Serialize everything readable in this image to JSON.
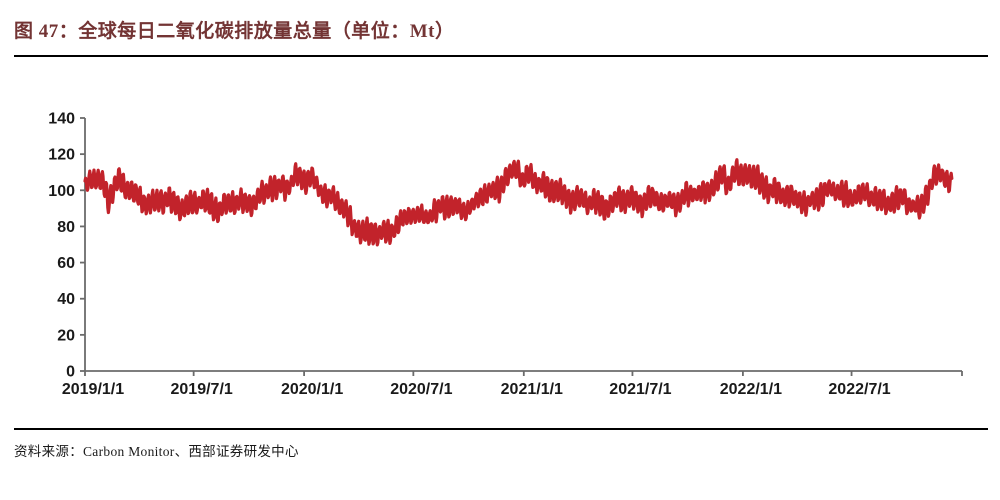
{
  "figure": {
    "title": "图 47：全球每日二氧化碳排放量总量（单位：Mt）",
    "source": "资料来源：Carbon Monitor、西部证券研发中心"
  },
  "colors": {
    "title_text": "#733434",
    "line": "#c2232b",
    "axis": "#6b6b6b",
    "tick_label": "#1a1a1a",
    "rule": "#000000"
  },
  "chart_data": {
    "type": "line",
    "title": "全球每日二氧化碳排放量总量",
    "unit": "Mt",
    "xlabel": "",
    "ylabel": "",
    "ylim": [
      0,
      140
    ],
    "yticks": [
      0,
      20,
      40,
      60,
      80,
      100,
      120,
      140
    ],
    "xticks": [
      "2019/1/1",
      "2019/7/1",
      "2020/1/1",
      "2020/7/1",
      "2021/1/1",
      "2021/7/1",
      "2022/1/1",
      "2022/7/1"
    ],
    "x_range": [
      "2019-01-01",
      "2023-01-01"
    ],
    "grid": false,
    "legend": "none",
    "weekly_amplitude": 5,
    "series": [
      {
        "name": "全球每日CO2排放量 (Mt)",
        "anchors": [
          [
            "2019-01-01",
            101
          ],
          [
            "2019-01-10",
            106
          ],
          [
            "2019-01-20",
            104
          ],
          [
            "2019-02-01",
            104
          ],
          [
            "2019-02-08",
            96
          ],
          [
            "2019-02-18",
            103
          ],
          [
            "2019-02-26",
            106
          ],
          [
            "2019-03-10",
            100
          ],
          [
            "2019-03-25",
            97
          ],
          [
            "2019-04-10",
            95
          ],
          [
            "2019-05-01",
            93
          ],
          [
            "2019-05-20",
            94
          ],
          [
            "2019-06-10",
            92
          ],
          [
            "2019-07-01",
            92
          ],
          [
            "2019-07-20",
            93
          ],
          [
            "2019-08-10",
            91
          ],
          [
            "2019-09-01",
            92
          ],
          [
            "2019-09-20",
            93
          ],
          [
            "2019-10-10",
            95
          ],
          [
            "2019-11-01",
            99
          ],
          [
            "2019-11-20",
            102
          ],
          [
            "2019-12-10",
            105
          ],
          [
            "2019-12-22",
            108
          ],
          [
            "2020-01-01",
            103
          ],
          [
            "2020-01-12",
            107
          ],
          [
            "2020-01-22",
            104
          ],
          [
            "2020-02-05",
            99
          ],
          [
            "2020-02-20",
            94
          ],
          [
            "2020-03-05",
            90
          ],
          [
            "2020-03-20",
            83
          ],
          [
            "2020-04-05",
            78
          ],
          [
            "2020-04-20",
            75
          ],
          [
            "2020-05-05",
            76
          ],
          [
            "2020-05-20",
            78
          ],
          [
            "2020-06-05",
            82
          ],
          [
            "2020-06-25",
            85
          ],
          [
            "2020-07-15",
            87
          ],
          [
            "2020-08-05",
            88
          ],
          [
            "2020-08-25",
            90
          ],
          [
            "2020-09-10",
            92
          ],
          [
            "2020-09-25",
            91
          ],
          [
            "2020-10-05",
            90
          ],
          [
            "2020-10-20",
            95
          ],
          [
            "2020-11-05",
            99
          ],
          [
            "2020-11-20",
            103
          ],
          [
            "2020-12-05",
            107
          ],
          [
            "2020-12-20",
            111
          ],
          [
            "2021-01-01",
            104
          ],
          [
            "2021-01-10",
            111
          ],
          [
            "2021-01-20",
            107
          ],
          [
            "2021-02-01",
            102
          ],
          [
            "2021-02-15",
            98
          ],
          [
            "2021-03-01",
            100
          ],
          [
            "2021-03-15",
            97
          ],
          [
            "2021-04-01",
            95
          ],
          [
            "2021-04-15",
            92
          ],
          [
            "2021-05-01",
            94
          ],
          [
            "2021-05-15",
            92
          ],
          [
            "2021-06-01",
            93
          ],
          [
            "2021-06-15",
            94
          ],
          [
            "2021-07-01",
            96
          ],
          [
            "2021-07-15",
            94
          ],
          [
            "2021-08-01",
            95
          ],
          [
            "2021-08-15",
            93
          ],
          [
            "2021-09-01",
            95
          ],
          [
            "2021-09-15",
            94
          ],
          [
            "2021-10-01",
            96
          ],
          [
            "2021-10-15",
            98
          ],
          [
            "2021-11-01",
            100
          ],
          [
            "2021-11-15",
            104
          ],
          [
            "2021-11-28",
            107
          ],
          [
            "2021-12-06",
            101
          ],
          [
            "2021-12-18",
            111
          ],
          [
            "2021-12-28",
            109
          ],
          [
            "2022-01-08",
            111
          ],
          [
            "2022-01-18",
            106
          ],
          [
            "2022-02-01",
            102
          ],
          [
            "2022-02-15",
            100
          ],
          [
            "2022-03-01",
            101
          ],
          [
            "2022-03-15",
            97
          ],
          [
            "2022-03-28",
            94
          ],
          [
            "2022-04-12",
            93
          ],
          [
            "2022-04-25",
            95
          ],
          [
            "2022-05-10",
            98
          ],
          [
            "2022-05-25",
            99
          ],
          [
            "2022-06-10",
            99
          ],
          [
            "2022-06-25",
            98
          ],
          [
            "2022-07-10",
            97
          ],
          [
            "2022-07-25",
            96
          ],
          [
            "2022-08-10",
            96
          ],
          [
            "2022-08-25",
            95
          ],
          [
            "2022-09-10",
            93
          ],
          [
            "2022-09-25",
            94
          ],
          [
            "2022-10-10",
            92
          ],
          [
            "2022-10-22",
            91
          ],
          [
            "2022-11-05",
            99
          ],
          [
            "2022-11-15",
            105
          ],
          [
            "2022-11-25",
            109
          ],
          [
            "2022-12-05",
            107
          ],
          [
            "2022-12-15",
            104
          ]
        ]
      }
    ]
  }
}
